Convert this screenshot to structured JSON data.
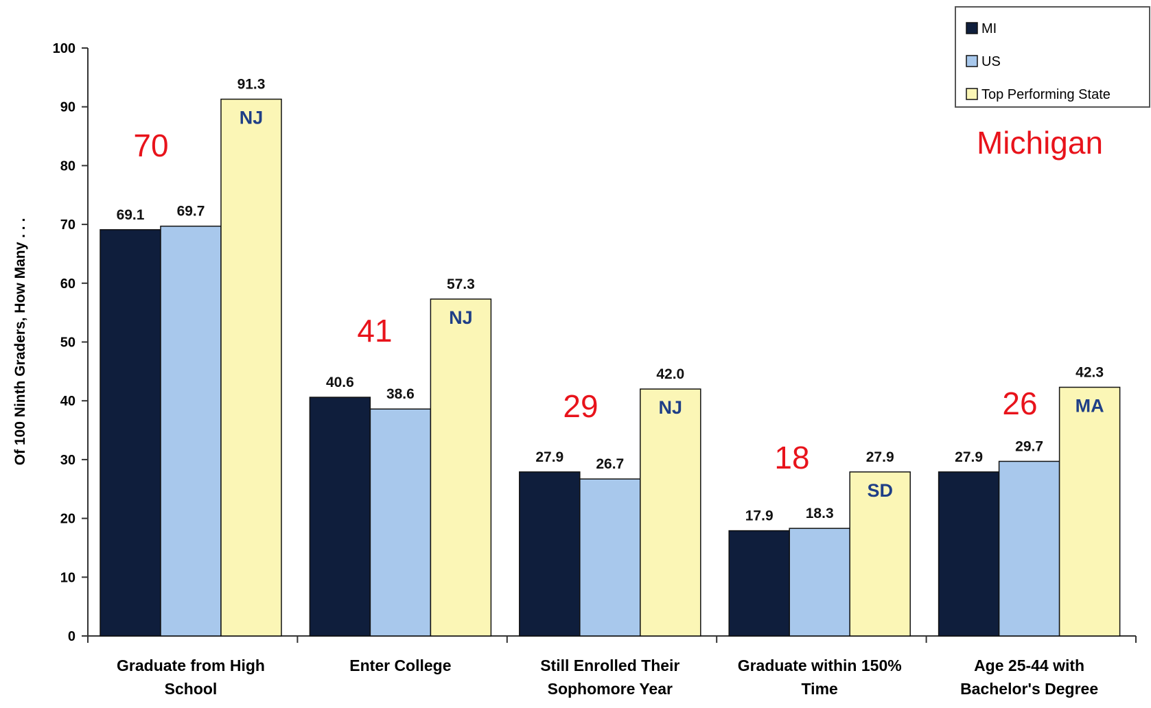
{
  "chart_data": {
    "type": "bar",
    "ylabel": "Of 100 Ninth Graders, How Many . . .",
    "ylim": [
      0,
      100
    ],
    "yticks": [
      0,
      10,
      20,
      30,
      40,
      50,
      60,
      70,
      80,
      90,
      100
    ],
    "categories": [
      [
        "Graduate from High",
        "School"
      ],
      [
        "Enter College"
      ],
      [
        "Still Enrolled Their",
        "Sophomore Year"
      ],
      [
        "Graduate within 150%",
        "Time"
      ],
      [
        "Age 25-44 with",
        "Bachelor's Degree"
      ]
    ],
    "series": [
      {
        "name": "MI",
        "color": "#0f1e3c",
        "values": [
          69.1,
          40.6,
          27.9,
          17.9,
          27.9
        ],
        "labels": [
          "69.1",
          "40.6",
          "27.9",
          "17.9",
          "27.9"
        ]
      },
      {
        "name": "US",
        "color": "#a8c8ec",
        "values": [
          69.7,
          38.6,
          26.7,
          18.3,
          29.7
        ],
        "labels": [
          "69.7",
          "38.6",
          "26.7",
          "18.3",
          "29.7"
        ]
      },
      {
        "name": "Top Performing State",
        "color": "#fbf6b6",
        "values": [
          91.3,
          57.3,
          42.0,
          27.9,
          42.3
        ],
        "labels": [
          "91.3",
          "57.3",
          "42.0",
          "27.9",
          "42.3"
        ]
      }
    ],
    "top_states": [
      "NJ",
      "NJ",
      "NJ",
      "SD",
      "MA"
    ],
    "annotations": [
      "70",
      "41",
      "29",
      "18",
      "26"
    ],
    "region_label": "Michigan",
    "legend_position": "top-right",
    "grid": false
  }
}
